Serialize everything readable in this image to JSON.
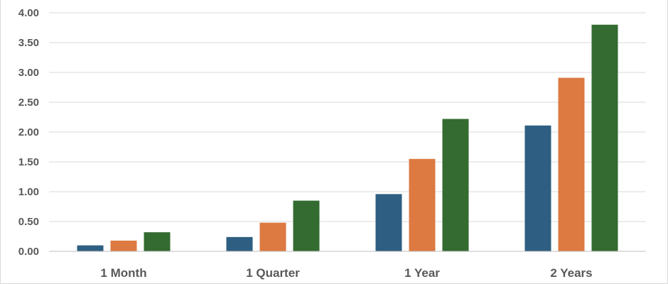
{
  "chart_data": {
    "type": "bar",
    "categories": [
      "1 Month",
      "1 Quarter",
      "1 Year",
      "2 Years"
    ],
    "series": [
      {
        "values": [
          0.1,
          0.24,
          0.96,
          2.11
        ],
        "color": "#2e5f82"
      },
      {
        "values": [
          0.18,
          0.48,
          1.55,
          2.91
        ],
        "color": "#dc7a42"
      },
      {
        "values": [
          0.32,
          0.85,
          2.22,
          3.8
        ],
        "color": "#336b30"
      }
    ],
    "yticks": [
      "0.00",
      "0.50",
      "1.00",
      "1.50",
      "2.00",
      "2.50",
      "3.00",
      "3.50",
      "4.00"
    ],
    "ylim": [
      0,
      4.0
    ],
    "grid": true,
    "legend": "none",
    "title": "",
    "xlabel": "",
    "ylabel": ""
  }
}
